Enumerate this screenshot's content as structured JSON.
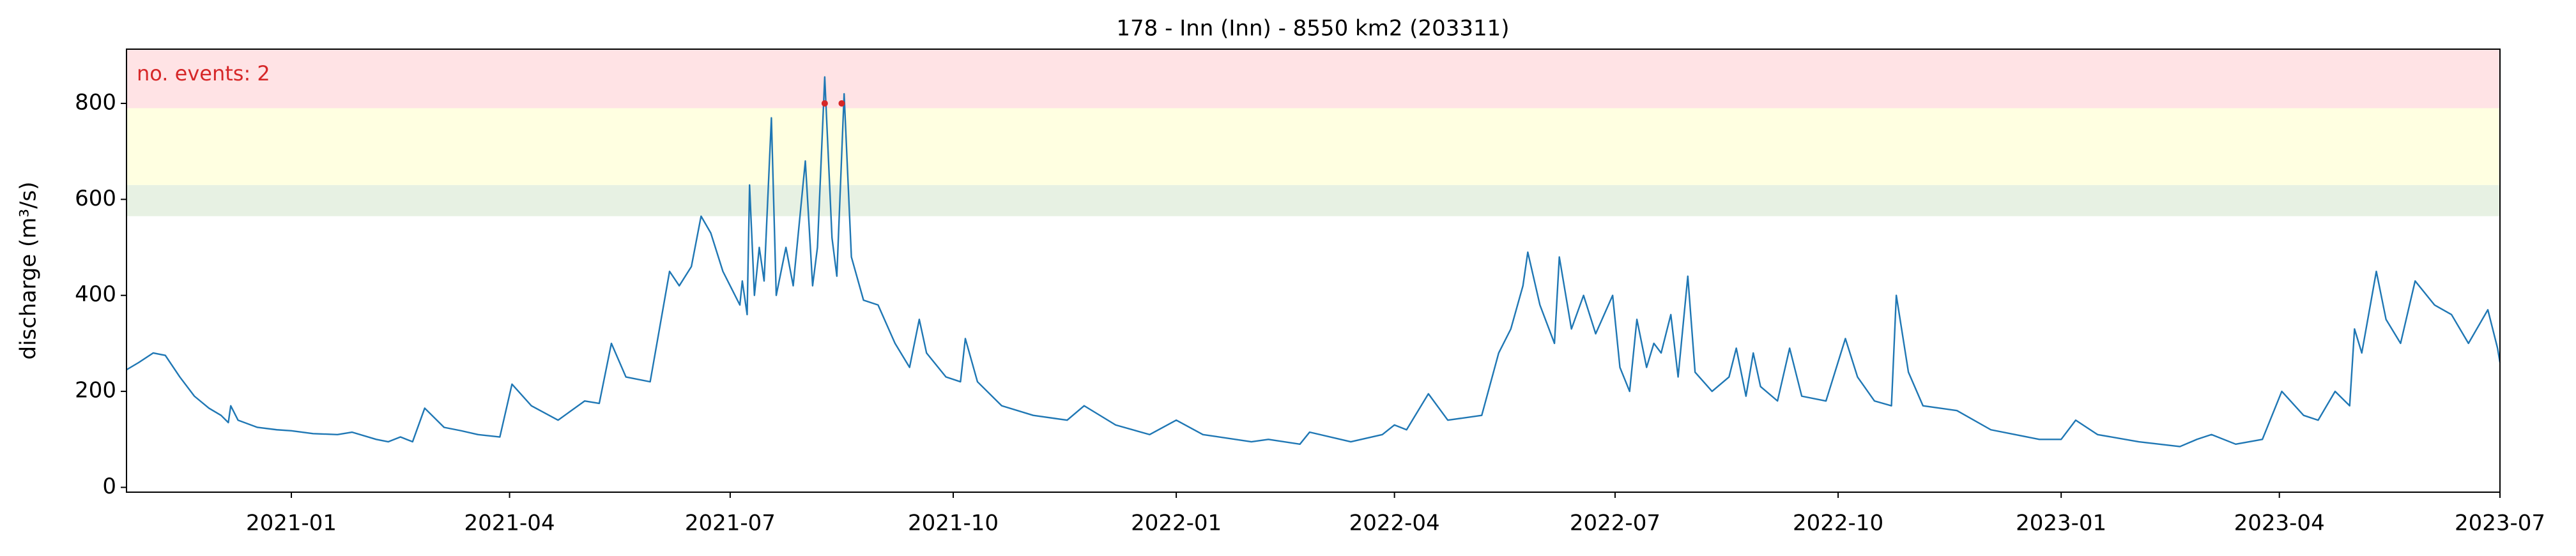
{
  "chart_data": {
    "type": "line",
    "title": "178 - Inn (Inn) - 8550 km2 (203311)",
    "ylabel": "discharge (m³/s)",
    "annotation": "no. events: 2",
    "annotation_color": "#d62728",
    "color": "#1f77b4",
    "x": [
      "2020-10-25",
      "2020-10-30",
      "2020-11-05",
      "2020-11-10",
      "2020-11-16",
      "2020-11-22",
      "2020-11-28",
      "2020-12-03",
      "2020-12-06",
      "2020-12-07",
      "2020-12-10",
      "2020-12-18",
      "2020-12-26",
      "2021-01-01",
      "2021-01-10",
      "2021-01-20",
      "2021-01-26",
      "2021-02-05",
      "2021-02-10",
      "2021-02-15",
      "2021-02-20",
      "2021-02-25",
      "2021-03-05",
      "2021-03-12",
      "2021-03-19",
      "2021-03-28",
      "2021-04-02",
      "2021-04-10",
      "2021-04-21",
      "2021-05-02",
      "2021-05-08",
      "2021-05-13",
      "2021-05-19",
      "2021-05-29",
      "2021-06-06",
      "2021-06-10",
      "2021-06-15",
      "2021-06-19",
      "2021-06-23",
      "2021-06-28",
      "2021-07-05",
      "2021-07-06",
      "2021-07-08",
      "2021-07-09",
      "2021-07-11",
      "2021-07-13",
      "2021-07-15",
      "2021-07-18",
      "2021-07-20",
      "2021-07-24",
      "2021-07-27",
      "2021-08-01",
      "2021-08-04",
      "2021-08-06",
      "2021-08-09",
      "2021-08-12",
      "2021-08-14",
      "2021-08-17",
      "2021-08-20",
      "2021-08-25",
      "2021-08-31",
      "2021-09-07",
      "2021-09-13",
      "2021-09-17",
      "2021-09-20",
      "2021-09-28",
      "2021-10-04",
      "2021-10-06",
      "2021-10-11",
      "2021-10-21",
      "2021-11-03",
      "2021-11-17",
      "2021-11-24",
      "2021-12-07",
      "2021-12-21",
      "2022-01-01",
      "2022-01-12",
      "2022-02-01",
      "2022-02-08",
      "2022-02-21",
      "2022-02-25",
      "2022-03-14",
      "2022-03-27",
      "2022-04-01",
      "2022-04-06",
      "2022-04-15",
      "2022-04-23",
      "2022-05-07",
      "2022-05-14",
      "2022-05-19",
      "2022-05-24",
      "2022-05-26",
      "2022-05-31",
      "2022-06-06",
      "2022-06-08",
      "2022-06-13",
      "2022-06-18",
      "2022-06-23",
      "2022-06-30",
      "2022-07-03",
      "2022-07-07",
      "2022-07-10",
      "2022-07-14",
      "2022-07-17",
      "2022-07-20",
      "2022-07-24",
      "2022-07-27",
      "2022-07-31",
      "2022-08-03",
      "2022-08-10",
      "2022-08-17",
      "2022-08-20",
      "2022-08-24",
      "2022-08-27",
      "2022-08-30",
      "2022-09-06",
      "2022-09-11",
      "2022-09-16",
      "2022-09-26",
      "2022-10-04",
      "2022-10-09",
      "2022-10-16",
      "2022-10-23",
      "2022-10-25",
      "2022-10-30",
      "2022-11-05",
      "2022-11-19",
      "2022-12-03",
      "2022-12-23",
      "2023-01-01",
      "2023-01-07",
      "2023-01-16",
      "2023-02-02",
      "2023-02-19",
      "2023-02-26",
      "2023-03-04",
      "2023-03-14",
      "2023-03-25",
      "2023-04-02",
      "2023-04-11",
      "2023-04-17",
      "2023-04-24",
      "2023-04-30",
      "2023-05-02",
      "2023-05-05",
      "2023-05-11",
      "2023-05-15",
      "2023-05-21",
      "2023-05-27",
      "2023-06-04",
      "2023-06-11",
      "2023-06-18",
      "2023-06-26",
      "2023-06-30",
      "2023-07-01"
    ],
    "values": [
      245,
      260,
      280,
      275,
      230,
      190,
      165,
      150,
      135,
      170,
      140,
      125,
      120,
      118,
      112,
      110,
      115,
      100,
      95,
      105,
      95,
      165,
      125,
      118,
      110,
      105,
      215,
      170,
      140,
      180,
      175,
      300,
      230,
      220,
      450,
      420,
      460,
      565,
      530,
      450,
      380,
      430,
      360,
      630,
      400,
      500,
      430,
      770,
      400,
      500,
      420,
      680,
      420,
      500,
      855,
      520,
      440,
      820,
      480,
      390,
      380,
      300,
      250,
      350,
      280,
      230,
      220,
      310,
      220,
      170,
      150,
      140,
      170,
      130,
      110,
      140,
      110,
      95,
      100,
      90,
      115,
      95,
      110,
      130,
      120,
      195,
      140,
      150,
      280,
      330,
      420,
      490,
      380,
      300,
      480,
      330,
      400,
      320,
      400,
      250,
      200,
      350,
      250,
      300,
      280,
      360,
      230,
      440,
      240,
      200,
      230,
      290,
      190,
      280,
      210,
      180,
      290,
      190,
      180,
      310,
      230,
      180,
      170,
      400,
      240,
      170,
      160,
      120,
      100,
      100,
      140,
      110,
      95,
      85,
      100,
      110,
      90,
      100,
      200,
      150,
      140,
      200,
      170,
      330,
      280,
      450,
      350,
      300,
      430,
      380,
      360,
      300,
      370,
      290,
      260
    ],
    "events": {
      "x": [
        "2021-08-09",
        "2021-08-16"
      ],
      "values": [
        800,
        800
      ],
      "color": "#d62728"
    },
    "bands": [
      {
        "from": 565,
        "to": 630,
        "color": "#e7f1e3"
      },
      {
        "from": 630,
        "to": 790,
        "color": "#ffffe1"
      },
      {
        "from": 790,
        "to": 913,
        "color": "#ffe3e5"
      }
    ],
    "xlim": [
      "2020-10-25",
      "2023-07-01"
    ],
    "xticks": [
      {
        "value": "2021-01-01",
        "label": "2021-01"
      },
      {
        "value": "2021-04-01",
        "label": "2021-04"
      },
      {
        "value": "2021-07-01",
        "label": "2021-07"
      },
      {
        "value": "2021-10-01",
        "label": "2021-10"
      },
      {
        "value": "2022-01-01",
        "label": "2022-01"
      },
      {
        "value": "2022-04-01",
        "label": "2022-04"
      },
      {
        "value": "2022-07-01",
        "label": "2022-07"
      },
      {
        "value": "2022-10-01",
        "label": "2022-10"
      },
      {
        "value": "2023-01-01",
        "label": "2023-01"
      },
      {
        "value": "2023-04-01",
        "label": "2023-04"
      },
      {
        "value": "2023-07-01",
        "label": "2023-07"
      }
    ],
    "ylim": [
      -10,
      913
    ],
    "yticks": [
      0,
      200,
      400,
      600,
      800
    ],
    "grid": false
  }
}
